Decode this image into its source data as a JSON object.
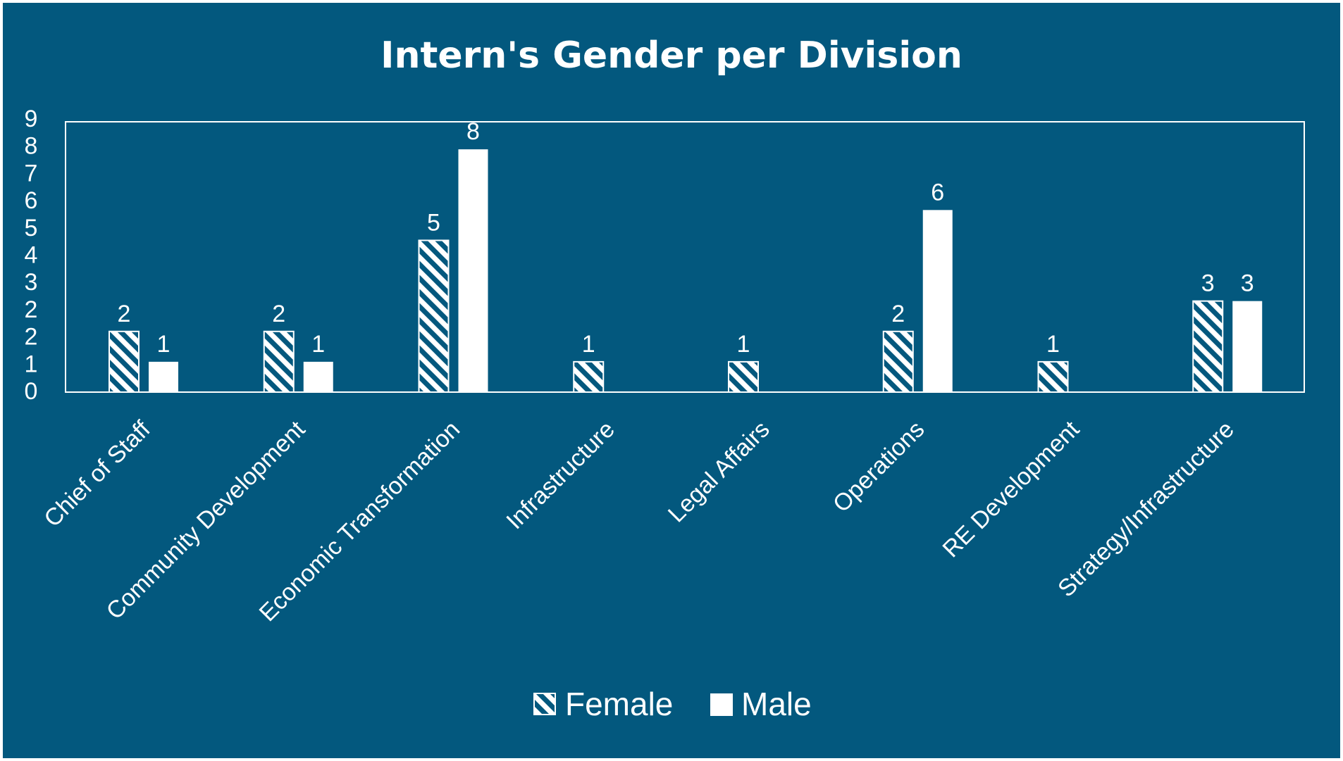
{
  "chart_data": {
    "type": "bar",
    "title": "Intern's Gender per Division",
    "categories": [
      "Chief of Staff",
      "Community Development",
      "Economic Transformation",
      "Infrastructure",
      "Legal Affairs",
      "Operations",
      "RE Development",
      "Strategy/Infrastructure"
    ],
    "series": [
      {
        "name": "Female",
        "values": [
          2,
          2,
          5,
          1,
          1,
          2,
          1,
          3
        ]
      },
      {
        "name": "Male",
        "values": [
          1,
          1,
          8,
          0,
          0,
          6,
          0,
          3
        ]
      }
    ],
    "y_ticks": [
      "0",
      "1",
      "2",
      "2",
      "3",
      "4",
      "5",
      "6",
      "7",
      "8",
      "9"
    ],
    "ylim": [
      0,
      9
    ],
    "xlabel": "",
    "ylabel": "",
    "legend_position": "bottom",
    "colors": {
      "background": "#03587e",
      "foreground": "#ffffff"
    }
  }
}
